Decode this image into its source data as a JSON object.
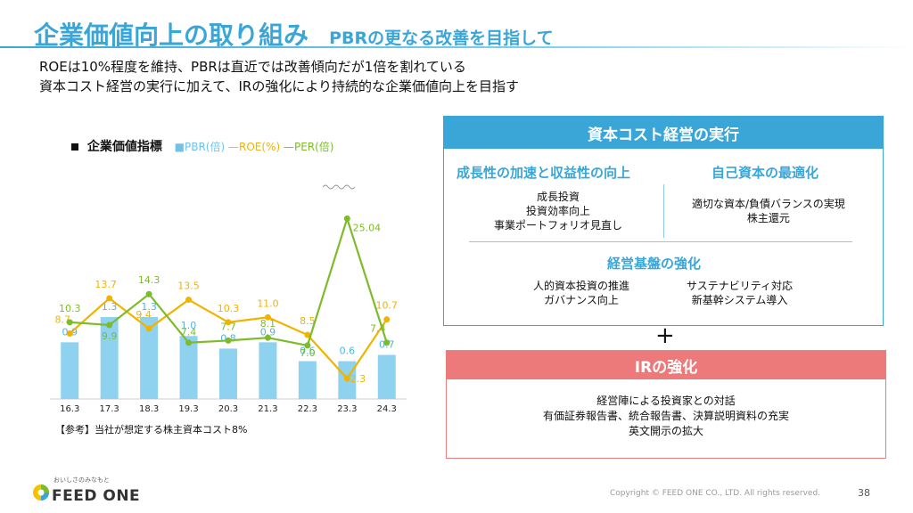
{
  "title": {
    "main": "企業価値向上の取り組み",
    "sub": "PBRの更なる改善を目指して"
  },
  "lead": [
    "ROEは10%程度を維持、PBRは直近では改善傾向だが1倍を割れている",
    "資本コスト経営の実行に加えて、IRの強化により持続的な企業価値向上を目指す"
  ],
  "chart_data": {
    "type": "bar",
    "title": "企業価値指標",
    "categories": [
      "16.3",
      "17.3",
      "18.3",
      "19.3",
      "20.3",
      "21.3",
      "22.3",
      "23.3",
      "24.3"
    ],
    "series": [
      {
        "name": "PBR(倍)",
        "kind": "bar",
        "color": "#8fd2f0",
        "values": [
          0.9,
          1.3,
          1.3,
          1.0,
          0.8,
          0.9,
          0.6,
          0.6,
          0.7
        ],
        "labels": [
          "0.9",
          "1.3",
          "1.3",
          "1.0",
          "0.8",
          "0.9",
          "0.6",
          "0.6",
          "0.7"
        ]
      },
      {
        "name": "ROE(%)",
        "kind": "line",
        "color": "#f0b400",
        "values": [
          8.7,
          13.7,
          9.4,
          13.5,
          10.3,
          11.0,
          8.5,
          2.3,
          10.7
        ],
        "labels": [
          "8.7",
          "13.7",
          "9.4",
          "13.5",
          "10.3",
          "11.0",
          "8.5",
          "2.3",
          "10.7"
        ]
      },
      {
        "name": "PER(倍)",
        "kind": "line",
        "color": "#7dbb2a",
        "values": [
          10.3,
          9.9,
          14.3,
          7.4,
          7.7,
          8.1,
          7.0,
          25.04,
          7.4
        ],
        "labels": [
          "10.3",
          "9.9",
          "14.3",
          "7.4",
          "7.7",
          "8.1",
          "7.0",
          "25.04",
          "7.4"
        ]
      }
    ],
    "legend": {
      "position": "top"
    },
    "grid": false
  },
  "note": "【参考】当社が想定する株主資本コスト8%",
  "capital_panel": {
    "heading": "資本コスト経営の実行",
    "growth": {
      "title": "成長性の加速と収益性の向上",
      "items": [
        "成長投資",
        "投資効率向上",
        "事業ポートフォリオ見直し"
      ]
    },
    "equity": {
      "title": "自己資本の最適化",
      "items": [
        "適切な資本/負債バランスの実現",
        "株主還元"
      ]
    },
    "base": {
      "title": "経営基盤の強化",
      "left": [
        "人的資本投資の推進",
        "ガバナンス向上"
      ],
      "right": [
        "サステナビリティ対応",
        "新基幹システム導入"
      ]
    }
  },
  "plus": "+",
  "ir_panel": {
    "heading": "IRの強化",
    "items": [
      "経営陣による投資家との対話",
      "有価証券報告書、統合報告書、決算説明資料の充実",
      "英文開示の拡大"
    ]
  },
  "footer": {
    "logo_tagline": "おいしさのみなもと",
    "logo": "FEED ONE",
    "copyright": "Copyright © FEED ONE CO., LTD. All rights reserved.",
    "page": "38"
  },
  "colors": {
    "accent": "#3aa6d8",
    "ir": "#ec7a7a",
    "pbr": "#8fd2f0",
    "roe": "#f0b400",
    "per": "#7dbb2a"
  }
}
